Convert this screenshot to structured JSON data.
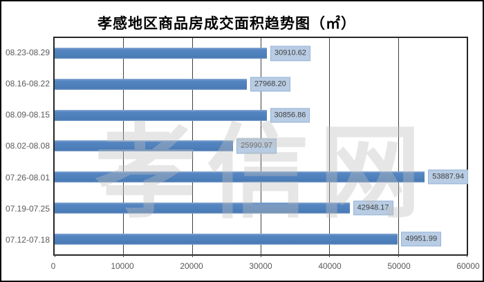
{
  "chart_data": {
    "type": "bar",
    "orientation": "horizontal",
    "title": "孝感地区商品房成交面积趋势图（㎡）",
    "categories": [
      "08.23-08.29",
      "08.16-08.22",
      "08.09-08.15",
      "08.02-08.08",
      "07.26-08.01",
      "07.19-07.25",
      "07.12-07.18"
    ],
    "values": [
      30910.62,
      27968.2,
      30856.86,
      25990.97,
      53887.94,
      42948.17,
      49951.99
    ],
    "value_labels": [
      "30910.62",
      "27968.20",
      "30856.86",
      "25990.97",
      "53887.94",
      "42948.17",
      "49951.99"
    ],
    "xlabel": "",
    "ylabel": "",
    "xlim": [
      0,
      60000
    ],
    "x_ticks": [
      "0",
      "10000",
      "20000",
      "30000",
      "40000",
      "50000",
      "60000"
    ],
    "grid": true,
    "legend": false,
    "colors": {
      "bar": "#4f81bd",
      "data_label_background": "#b8cce4",
      "data_label_border": "#95b3d7",
      "data_label_text": "#3f3f3f",
      "axis_text": "#595959",
      "gridline": "#3f3f3f",
      "plot_border": "#262626",
      "title_text": "#000000",
      "frame_border": "#000000"
    }
  },
  "watermark": {
    "text": "孝信网"
  }
}
